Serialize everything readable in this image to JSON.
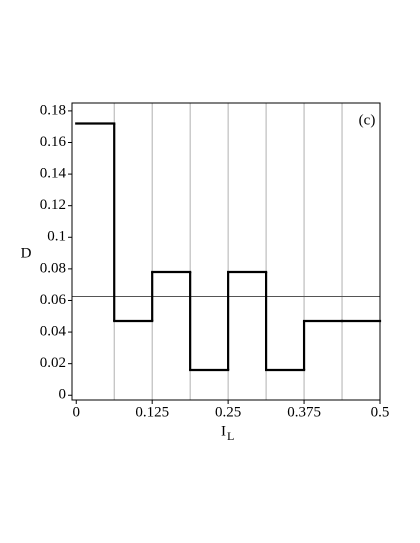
{
  "chart_data": {
    "type": "histogram",
    "annotation": "(c)",
    "ylabel": "D",
    "xlabel": "I",
    "xlabel_subscript": "L",
    "bins": [
      0,
      0.0625,
      0.125,
      0.1875,
      0.25,
      0.3125,
      0.375,
      0.4375,
      0.5
    ],
    "values": [
      0.172,
      0.047,
      0.078,
      0.016,
      0.078,
      0.016,
      0.047,
      0.047
    ],
    "reference_line": 0.0625,
    "xlim": [
      -0.007,
      0.5
    ],
    "ylim": [
      -0.003,
      0.185
    ],
    "xticks": [
      0,
      0.125,
      0.25,
      0.375,
      0.5
    ],
    "yticks": [
      0,
      0.02,
      0.04,
      0.06,
      0.08,
      0.1,
      0.12,
      0.14,
      0.16,
      0.18
    ],
    "grid": true,
    "color": "#000000",
    "grid_color": "#b0b0b0",
    "reference_color": "#555555"
  }
}
